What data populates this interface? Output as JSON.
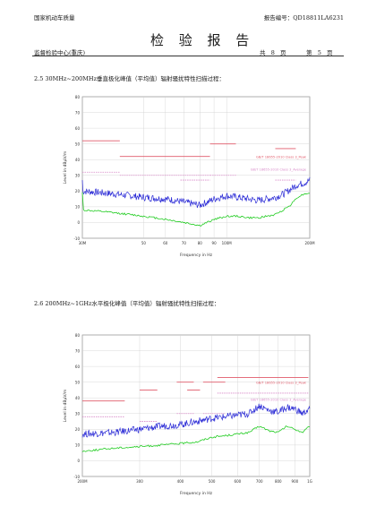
{
  "header": {
    "org": "国家机动车质量",
    "title": "检 验 报 告",
    "report_no": "报告编号：QD18811LA6231",
    "center": "监督检验中心(重庆)",
    "page_total_label": "共",
    "page_total": "8",
    "page_unit": "页",
    "page_current_label": "第",
    "page_current": "5",
    "page_unit2": "页"
  },
  "sections": [
    {
      "heading": "2.5   30MHz~200MHz垂直极化峰值（平均值）辐射骚扰特性扫描过程："
    },
    {
      "heading": "2.6   200MHz~1GHz水平极化峰值（平均值）辐射骚扰特性扫描过程："
    }
  ],
  "charts": {
    "ylabel": "Level in dBµV/m",
    "xlabel": "Frequency in Hz",
    "colors": {
      "peak": "#2b2bd6",
      "avg": "#22cc22",
      "limit_peak": "#e05a6a",
      "limit_avg": "#d889c8",
      "grid": "#cfcfcf",
      "bg": "#ffffff"
    }
  },
  "chart_data": [
    {
      "type": "line",
      "xscale": "log",
      "xlim": [
        30,
        200
      ],
      "ylim": [
        -10,
        80
      ],
      "ytick_labels": [
        "80",
        "70",
        "60",
        "50",
        "40",
        "30",
        "20",
        "10",
        "0",
        "-10"
      ],
      "xtick_labels": [
        "30M",
        "50",
        "60",
        "70",
        "80",
        "90",
        "100M",
        "200M"
      ],
      "legend": [
        "GB/T 18655-2010 Class 3_Peak",
        "GB/T 18655-2010 Class 3_Average"
      ],
      "limits_peak": [
        {
          "x": [
            30,
            41
          ],
          "y": 52
        },
        {
          "x": [
            41,
            87
          ],
          "y": 42
        },
        {
          "x": [
            87,
            108
          ],
          "y": 50
        },
        {
          "x": [
            150,
            178
          ],
          "y": 47
        }
      ],
      "limits_avg": [
        {
          "x": [
            30,
            41
          ],
          "y": 32
        },
        {
          "x": [
            41,
            87
          ],
          "y": 30
        },
        {
          "x": [
            68,
            87
          ],
          "y": 27
        },
        {
          "x": [
            87,
            108
          ],
          "y": 30
        },
        {
          "x": [
            150,
            178
          ],
          "y": 27
        }
      ],
      "series": [
        {
          "name": "Peak",
          "x": [
            30,
            35,
            40,
            45,
            50,
            55,
            60,
            65,
            70,
            75,
            80,
            85,
            90,
            100,
            110,
            120,
            130,
            140,
            150,
            160,
            170,
            180,
            190,
            200
          ],
          "y": [
            20,
            19,
            18,
            17,
            16,
            15.5,
            15,
            14,
            13,
            12,
            11,
            13,
            15,
            17,
            16,
            15,
            14,
            15,
            16,
            18,
            21,
            24,
            25,
            27
          ]
        },
        {
          "name": "Average",
          "x": [
            30,
            35,
            40,
            45,
            50,
            55,
            60,
            65,
            70,
            75,
            80,
            85,
            90,
            100,
            110,
            120,
            130,
            140,
            150,
            160,
            170,
            180,
            190,
            200
          ],
          "y": [
            8,
            7,
            6,
            5,
            4,
            3,
            2,
            1,
            0,
            -1,
            -2,
            0,
            2,
            4,
            4,
            3,
            3,
            4,
            5,
            8,
            11,
            16,
            18,
            19
          ]
        }
      ]
    },
    {
      "type": "line",
      "xscale": "log",
      "xlim": [
        200,
        1000
      ],
      "ylim": [
        -10,
        80
      ],
      "ytick_labels": [
        "80",
        "70",
        "60",
        "50",
        "40",
        "30",
        "20",
        "10",
        "0",
        "-10"
      ],
      "xtick_labels": [
        "200M",
        "300",
        "400",
        "500",
        "600",
        "700",
        "800",
        "900",
        "1G"
      ],
      "legend": [
        "GB/T 18655-2010 Class 3_Peak",
        "GB/T 18655-2010 Class 3_Average"
      ],
      "limits_peak": [
        {
          "x": [
            200,
            270
          ],
          "y": 38
        },
        {
          "x": [
            300,
            340
          ],
          "y": 45
        },
        {
          "x": [
            390,
            440
          ],
          "y": 50
        },
        {
          "x": [
            420,
            460
          ],
          "y": 45
        },
        {
          "x": [
            470,
            550
          ],
          "y": 50
        },
        {
          "x": [
            520,
            990
          ],
          "y": 53
        }
      ],
      "limits_avg": [
        {
          "x": [
            200,
            270
          ],
          "y": 28
        },
        {
          "x": [
            300,
            340
          ],
          "y": 25
        },
        {
          "x": [
            390,
            440
          ],
          "y": 30
        },
        {
          "x": [
            470,
            550
          ],
          "y": 30
        },
        {
          "x": [
            520,
            990
          ],
          "y": 43
        }
      ],
      "series": [
        {
          "name": "Peak",
          "x": [
            200,
            250,
            300,
            350,
            400,
            450,
            500,
            550,
            600,
            650,
            700,
            750,
            800,
            850,
            900,
            950,
            1000
          ],
          "y": [
            17,
            18,
            20,
            22,
            23,
            25,
            27,
            28,
            29,
            30,
            35,
            32,
            31,
            34,
            33,
            30,
            33
          ]
        },
        {
          "name": "Average",
          "x": [
            200,
            250,
            300,
            350,
            400,
            450,
            500,
            550,
            600,
            650,
            700,
            750,
            800,
            850,
            900,
            950,
            1000
          ],
          "y": [
            6,
            8,
            9,
            10,
            11,
            12,
            15,
            16,
            17,
            18,
            22,
            19,
            18,
            22,
            20,
            18,
            22
          ]
        }
      ]
    }
  ]
}
